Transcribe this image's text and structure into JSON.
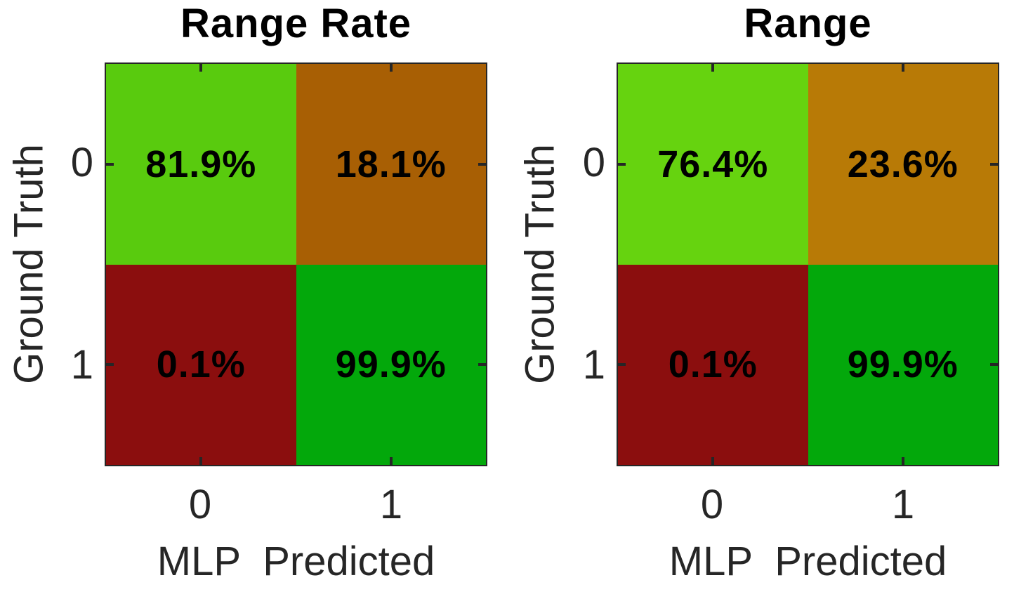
{
  "figure": {
    "background": "#ffffff",
    "axis_color": "#262626",
    "text_color": "#000000"
  },
  "chart_data": [
    {
      "type": "heatmap",
      "title": "Range Rate",
      "xlabel": "MLP  Predicted",
      "ylabel": "Ground Truth",
      "x_categories": [
        "0",
        "1"
      ],
      "y_categories": [
        "0",
        "1"
      ],
      "values_percent": [
        [
          81.9,
          18.1
        ],
        [
          0.1,
          99.9
        ]
      ],
      "cell_labels": [
        [
          "81.9%",
          "18.1%"
        ],
        [
          "0.1%",
          "99.9%"
        ]
      ],
      "cell_colors": [
        [
          "#59CB0E",
          "#A85F04"
        ],
        [
          "#8B0E0E",
          "#03A80B"
        ]
      ],
      "grid": false,
      "legend": "none"
    },
    {
      "type": "heatmap",
      "title": "Range",
      "xlabel": "MLP  Predicted",
      "ylabel": "Ground Truth",
      "x_categories": [
        "0",
        "1"
      ],
      "y_categories": [
        "0",
        "1"
      ],
      "values_percent": [
        [
          76.4,
          23.6
        ],
        [
          0.1,
          99.9
        ]
      ],
      "cell_labels": [
        [
          "76.4%",
          "23.6%"
        ],
        [
          "0.1%",
          "99.9%"
        ]
      ],
      "cell_colors": [
        [
          "#66D30F",
          "#B87A06"
        ],
        [
          "#8B0E0E",
          "#03A80B"
        ]
      ],
      "grid": false,
      "legend": "none"
    }
  ]
}
